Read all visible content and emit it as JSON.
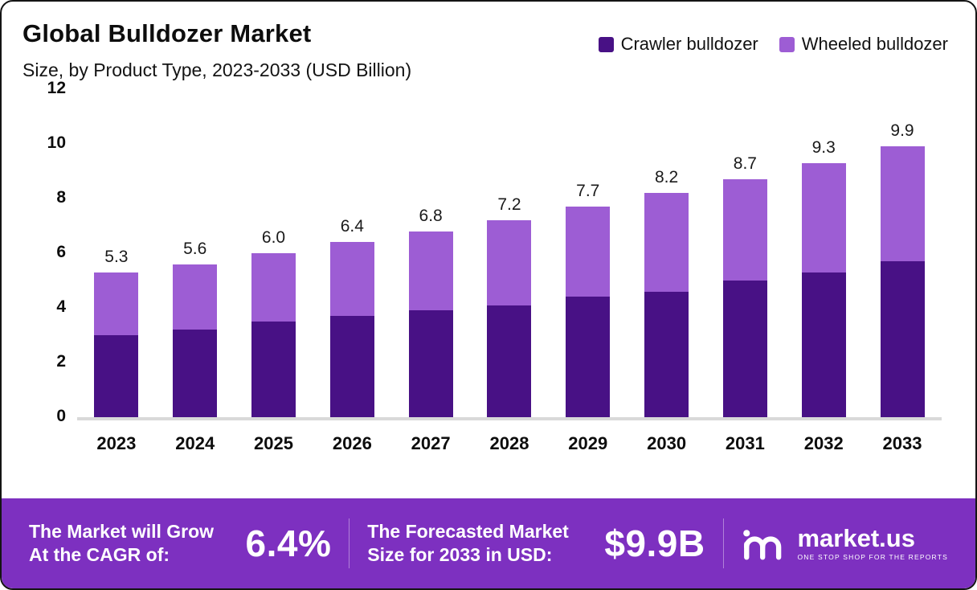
{
  "header": {
    "title": "Global Bulldozer Market",
    "subtitle": "Size, by Product Type, 2023-2033 (USD Billion)"
  },
  "legend": [
    {
      "label": "Crawler bulldozer",
      "color": "#481185"
    },
    {
      "label": "Wheeled bulldozer",
      "color": "#9d5dd4"
    }
  ],
  "chart_data": {
    "type": "bar",
    "stacked": true,
    "title": "Global Bulldozer Market Size, by Product Type, 2023-2033 (USD Billion)",
    "categories": [
      "2023",
      "2024",
      "2025",
      "2026",
      "2027",
      "2028",
      "2029",
      "2030",
      "2031",
      "2032",
      "2033"
    ],
    "series": [
      {
        "name": "Crawler bulldozer",
        "color": "#481185",
        "values": [
          3.0,
          3.2,
          3.5,
          3.7,
          3.9,
          4.1,
          4.4,
          4.6,
          5.0,
          5.3,
          5.7
        ]
      },
      {
        "name": "Wheeled bulldozer",
        "color": "#9d5dd4",
        "values": [
          2.3,
          2.4,
          2.5,
          2.7,
          2.9,
          3.1,
          3.3,
          3.6,
          3.7,
          4.0,
          4.2
        ]
      }
    ],
    "totals": [
      5.3,
      5.6,
      6.0,
      6.4,
      6.8,
      7.2,
      7.7,
      8.2,
      8.7,
      9.3,
      9.9
    ],
    "total_labels": [
      "5.3",
      "5.6",
      "6.0",
      "6.4",
      "6.8",
      "7.2",
      "7.7",
      "8.2",
      "8.7",
      "9.3",
      "9.9"
    ],
    "xlabel": "",
    "ylabel": "",
    "ylim": [
      0,
      12
    ],
    "yticks": [
      0,
      2,
      4,
      6,
      8,
      10,
      12
    ],
    "grid": false,
    "legend_position": "top-right"
  },
  "footer": {
    "cagr_label": "The Market will Grow At the CAGR of:",
    "cagr_value": "6.4%",
    "forecast_label": "The Forecasted Market Size for 2033 in USD:",
    "forecast_value": "$9.9B",
    "brand": "market.us",
    "brand_tagline": "ONE STOP SHOP FOR THE REPORTS",
    "background": "#7d30c0"
  }
}
